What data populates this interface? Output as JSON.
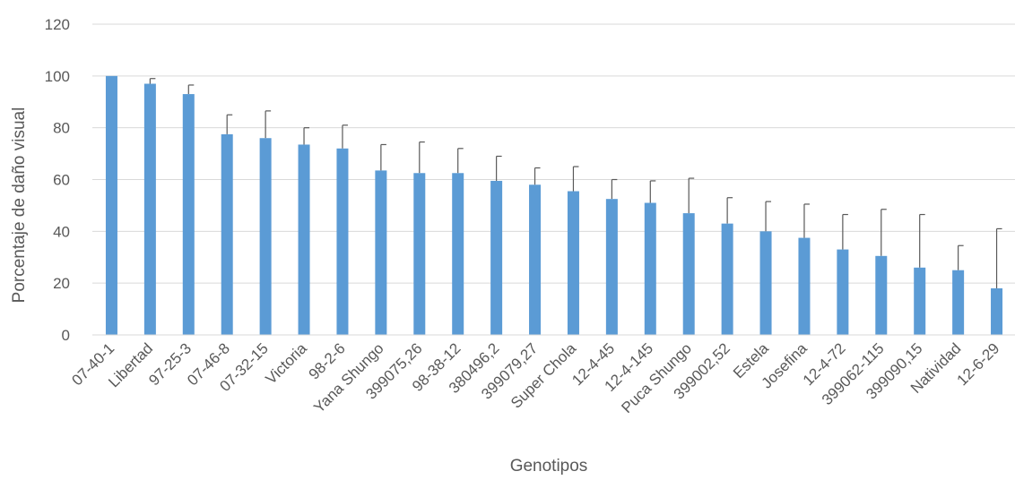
{
  "chart_data": {
    "type": "bar",
    "title": "",
    "xlabel": "Genotipos",
    "ylabel": "Porcentaje de daño visual",
    "ylim": [
      0,
      120
    ],
    "yticks": [
      0,
      20,
      40,
      60,
      80,
      100,
      120
    ],
    "grid": true,
    "legend": "none",
    "bar_color": "#5B9BD5",
    "categories": [
      "07-40-1",
      "Libertad",
      "97-25-3",
      "07-46-8",
      "07-32-15",
      "Victoria",
      "98-2-6",
      "Yana Shungo",
      "399075,26",
      "98-38-12",
      "380496,2",
      "399079,27",
      "Super Chola",
      "12-4-45",
      "12-4-145",
      "Puca Shungo",
      "399002,52",
      "Estela",
      "Josefina",
      "12-4-72",
      "399062-115",
      "399090,15",
      "Natividad",
      "12-6-29"
    ],
    "values": [
      100,
      97,
      93,
      77.5,
      76,
      73.5,
      72,
      63.5,
      62.5,
      62.5,
      59.5,
      58,
      55.5,
      52.5,
      51,
      47,
      43,
      40,
      37.5,
      33,
      30.5,
      26,
      25,
      18
    ],
    "error_upper": [
      0,
      2,
      3.5,
      7.5,
      10.5,
      6.5,
      9,
      10,
      12,
      9.5,
      9.5,
      6.5,
      9.5,
      7.5,
      8.5,
      13.5,
      10,
      11.5,
      13,
      13.5,
      18,
      20.5,
      9.5,
      23
    ]
  }
}
